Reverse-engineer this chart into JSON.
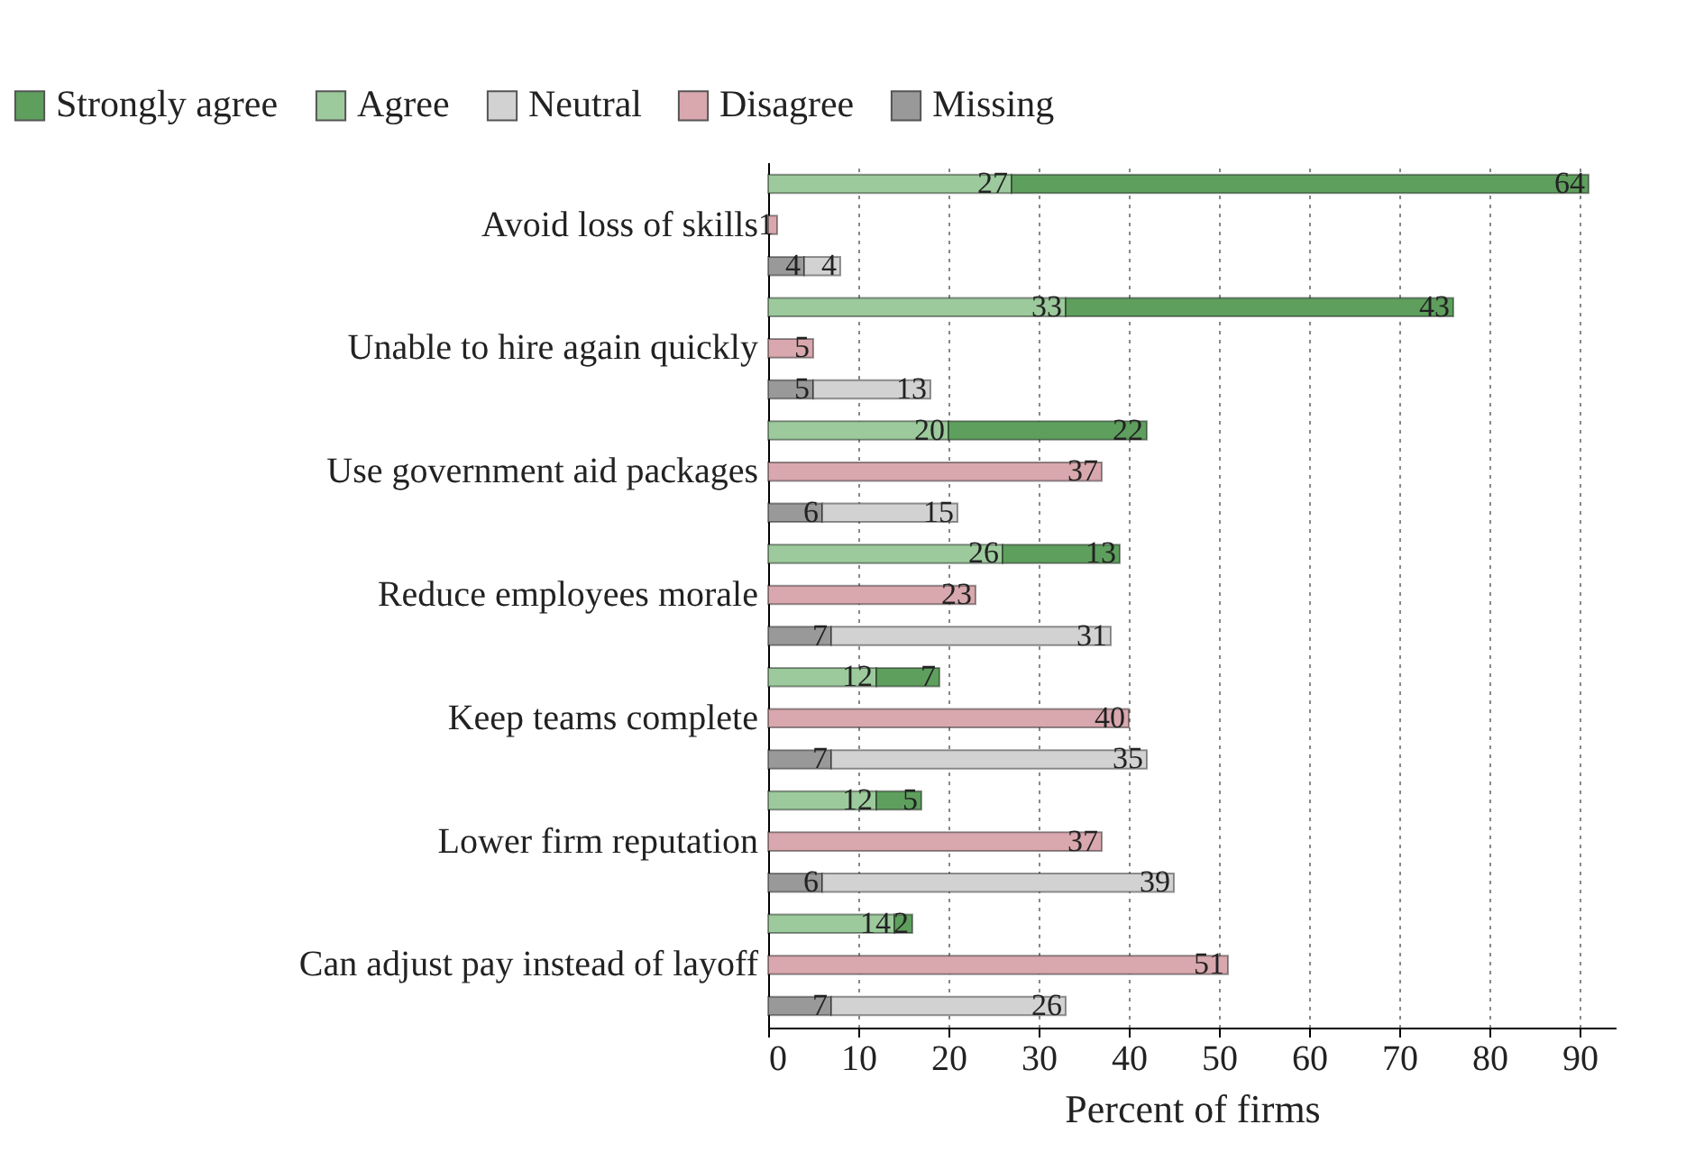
{
  "chart_data": {
    "type": "bar",
    "orientation": "horizontal",
    "stacked": true,
    "xlabel": "Percent of firms",
    "categories": [
      null,
      "Avoid loss of skills",
      null,
      null,
      "Unable to hire again quickly",
      null,
      null,
      "Use government aid packages",
      null,
      null,
      "Reduce employees morale",
      null,
      null,
      "Keep teams complete",
      null,
      null,
      "Lower firm reputation",
      null,
      null,
      "Can adjust pay instead of layoff",
      null
    ],
    "series": [
      {
        "name": "Missing",
        "color": "#999999",
        "values": [
          null,
          null,
          4,
          null,
          null,
          5,
          null,
          null,
          6,
          null,
          null,
          7,
          null,
          null,
          7,
          null,
          null,
          6,
          null,
          null,
          7
        ]
      },
      {
        "name": "Disagree",
        "color": "#d8a8ae",
        "values": [
          null,
          1,
          null,
          null,
          5,
          null,
          null,
          37,
          null,
          null,
          23,
          null,
          null,
          40,
          null,
          null,
          37,
          null,
          null,
          51,
          null
        ]
      },
      {
        "name": "Neutral",
        "color": "#d2d2d2",
        "values": [
          null,
          null,
          4,
          null,
          null,
          13,
          null,
          null,
          15,
          null,
          null,
          31,
          null,
          null,
          35,
          null,
          null,
          39,
          null,
          null,
          26
        ]
      },
      {
        "name": "Agree",
        "color": "#9cca9c",
        "values": [
          27,
          null,
          null,
          33,
          null,
          null,
          20,
          null,
          null,
          26,
          null,
          null,
          12,
          null,
          null,
          12,
          null,
          null,
          14,
          null,
          null
        ]
      },
      {
        "name": "Strongly agree",
        "color": "#5e9f5e",
        "values": [
          64,
          null,
          null,
          43,
          null,
          null,
          22,
          null,
          null,
          13,
          null,
          null,
          7,
          null,
          null,
          5,
          null,
          null,
          2,
          null,
          null
        ]
      }
    ],
    "xlim": [
      0,
      94
    ],
    "xticks": [
      0,
      10,
      20,
      30,
      40,
      50,
      60,
      70,
      80,
      90
    ],
    "grid": "x",
    "legend": "top",
    "data_labels": true
  }
}
